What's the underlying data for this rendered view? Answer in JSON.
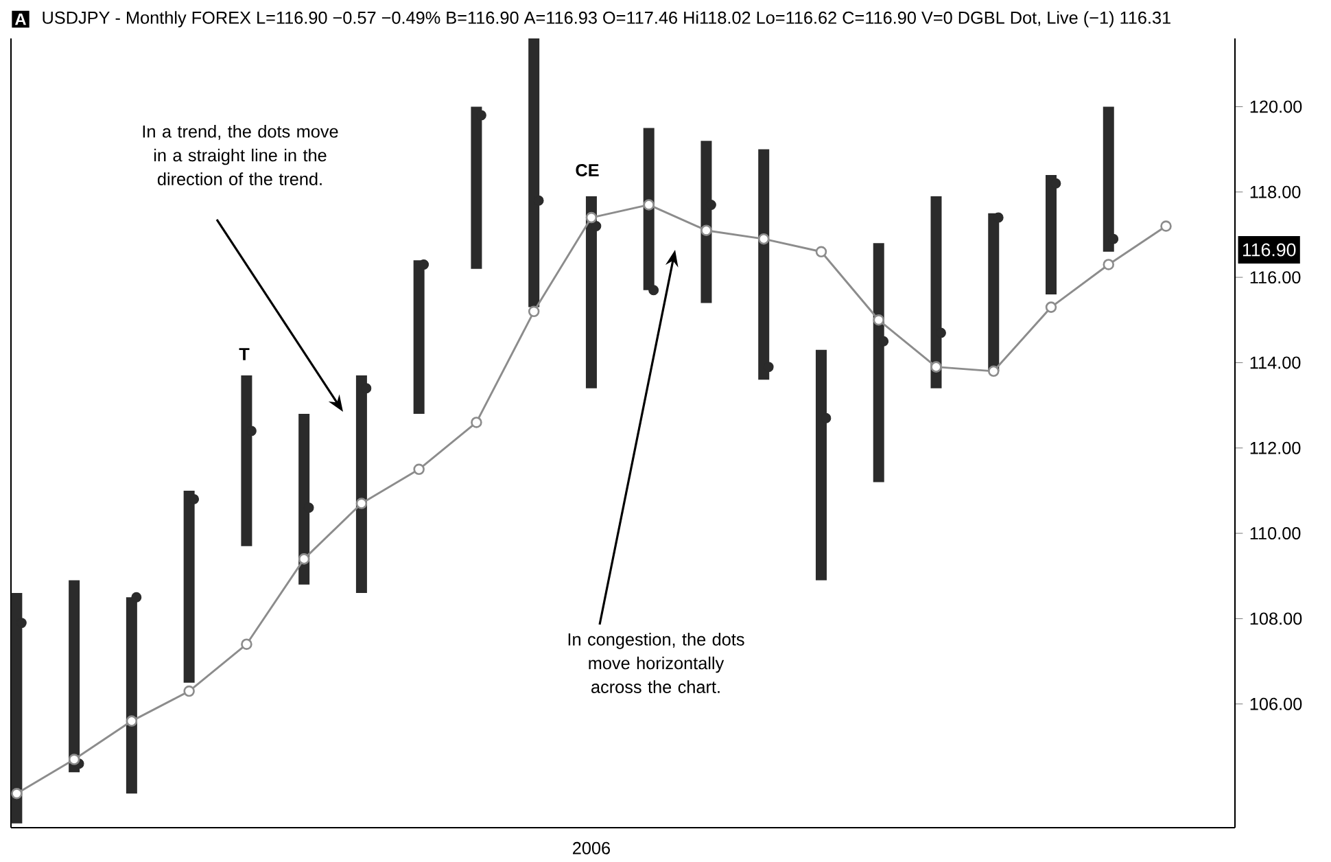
{
  "chart_data": {
    "type": "bar",
    "title": "USDJPY - Monthly FOREX L=116.90 −0.57 −0.49%   B=116.90   A=116.93   O=117.46   Hi118.02   Lo=116.62   C=116.90   V=0 DGBL Dot, Live (−1) 116.31",
    "categories": [
      null,
      null,
      null,
      null,
      null,
      null,
      null,
      null,
      null,
      null,
      "2006",
      null,
      null,
      null,
      null,
      null,
      null,
      null,
      null,
      null,
      null
    ],
    "series": [
      {
        "color": "#2b2b2b",
        "base": [
          103.2,
          104.4,
          103.9,
          106.5,
          109.7,
          108.8,
          108.6,
          112.8,
          116.2,
          115.3,
          113.4,
          115.7,
          115.4,
          113.6,
          108.9,
          111.2,
          113.4,
          113.8,
          115.6,
          116.6,
          null
        ],
        "values": [
          5.4,
          4.5,
          4.6,
          4.5,
          4.0,
          4.0,
          5.1,
          3.6,
          3.8,
          6.3,
          4.5,
          3.8,
          3.8,
          5.4,
          5.4,
          5.6,
          4.5,
          3.7,
          2.8,
          3.4,
          null
        ]
      },
      {
        "type": "scatter",
        "color": "#2b2b2b",
        "marker": "circle",
        "values": [
          107.9,
          104.6,
          108.5,
          110.8,
          112.4,
          110.6,
          113.4,
          116.3,
          119.8,
          117.8,
          117.2,
          115.7,
          117.7,
          113.9,
          112.7,
          114.5,
          114.7,
          117.4,
          118.2,
          116.9,
          null
        ]
      },
      {
        "type": "line",
        "color": "#8c8c8c",
        "marker": "circle",
        "values": [
          103.9,
          104.7,
          105.6,
          106.3,
          107.4,
          109.4,
          110.7,
          111.5,
          112.6,
          115.2,
          117.4,
          117.7,
          117.1,
          116.9,
          116.6,
          115.0,
          113.9,
          113.8,
          115.3,
          116.3,
          117.2
        ]
      }
    ],
    "ylim": [
      103.1,
      121.6
    ],
    "yticks": [
      {
        "value": 106,
        "label": "106.00"
      },
      {
        "value": 108,
        "label": "108.00"
      },
      {
        "value": 110,
        "label": "110.00"
      },
      {
        "value": 112,
        "label": "112.00"
      },
      {
        "value": 114,
        "label": "114.00"
      },
      {
        "value": 116,
        "label": "116.00"
      },
      {
        "value": 118,
        "label": "118.00"
      },
      {
        "value": 120,
        "label": "120.00"
      }
    ],
    "annotations": [
      "A",
      "T",
      "CE",
      "In a trend, the dots move in a straight line in the direction of the trend.",
      "In congestion, the dots move horizontally across the chart.",
      "116.90"
    ]
  }
}
